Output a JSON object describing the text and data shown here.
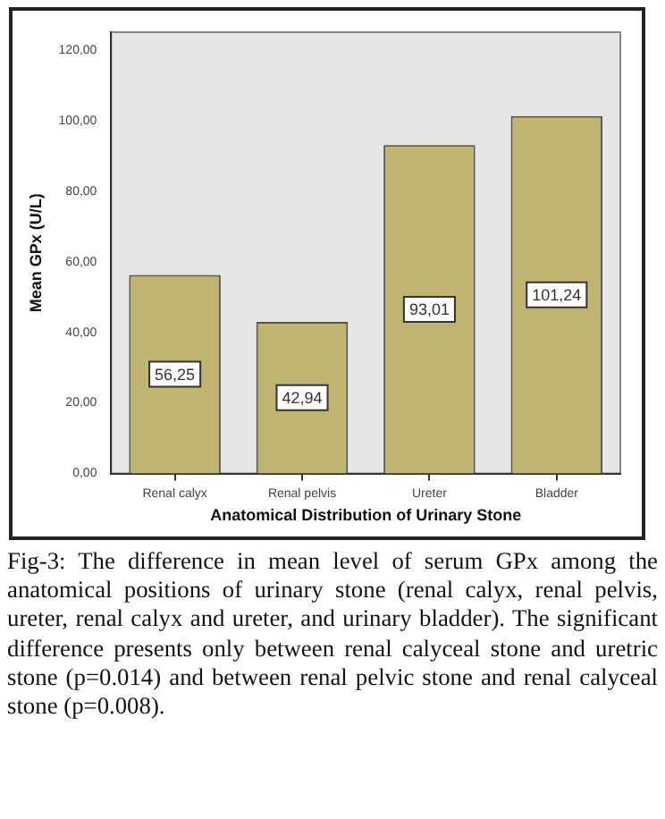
{
  "chart_data": {
    "type": "bar",
    "xlabel": "Anatomical Distribution of Urinary Stone",
    "ylabel": "Mean GPx (U/L)",
    "categories": [
      "Renal calyx",
      "Renal pelvis",
      "Ureter",
      "Bladder"
    ],
    "values": [
      56.25,
      42.94,
      93.01,
      101.24
    ],
    "value_labels": [
      "56,25",
      "42,94",
      "93,01",
      "101,24"
    ],
    "color": "#bfb571",
    "ylim": [
      0,
      125
    ],
    "yticks": [
      {
        "value": 0,
        "label": "0,00"
      },
      {
        "value": 20,
        "label": "20,00"
      },
      {
        "value": 40,
        "label": "40,00"
      },
      {
        "value": 60,
        "label": "60,00"
      },
      {
        "value": 80,
        "label": "80,00"
      },
      {
        "value": 100,
        "label": "100,00"
      },
      {
        "value": 120,
        "label": "120,00"
      }
    ],
    "grid": false,
    "legend": false,
    "annotations": [
      "Fig-3: The difference in mean level of serum GPx among the anatomical positions of urinary stone (renal calyx, renal pelvis, ureter, renal calyx and ureter, and urinary bladder). The significant difference presents only between renal calyceal stone and uretric stone (p=0.014) and between renal pelvic stone and renal calyceal stone (p=0.008)."
    ]
  }
}
